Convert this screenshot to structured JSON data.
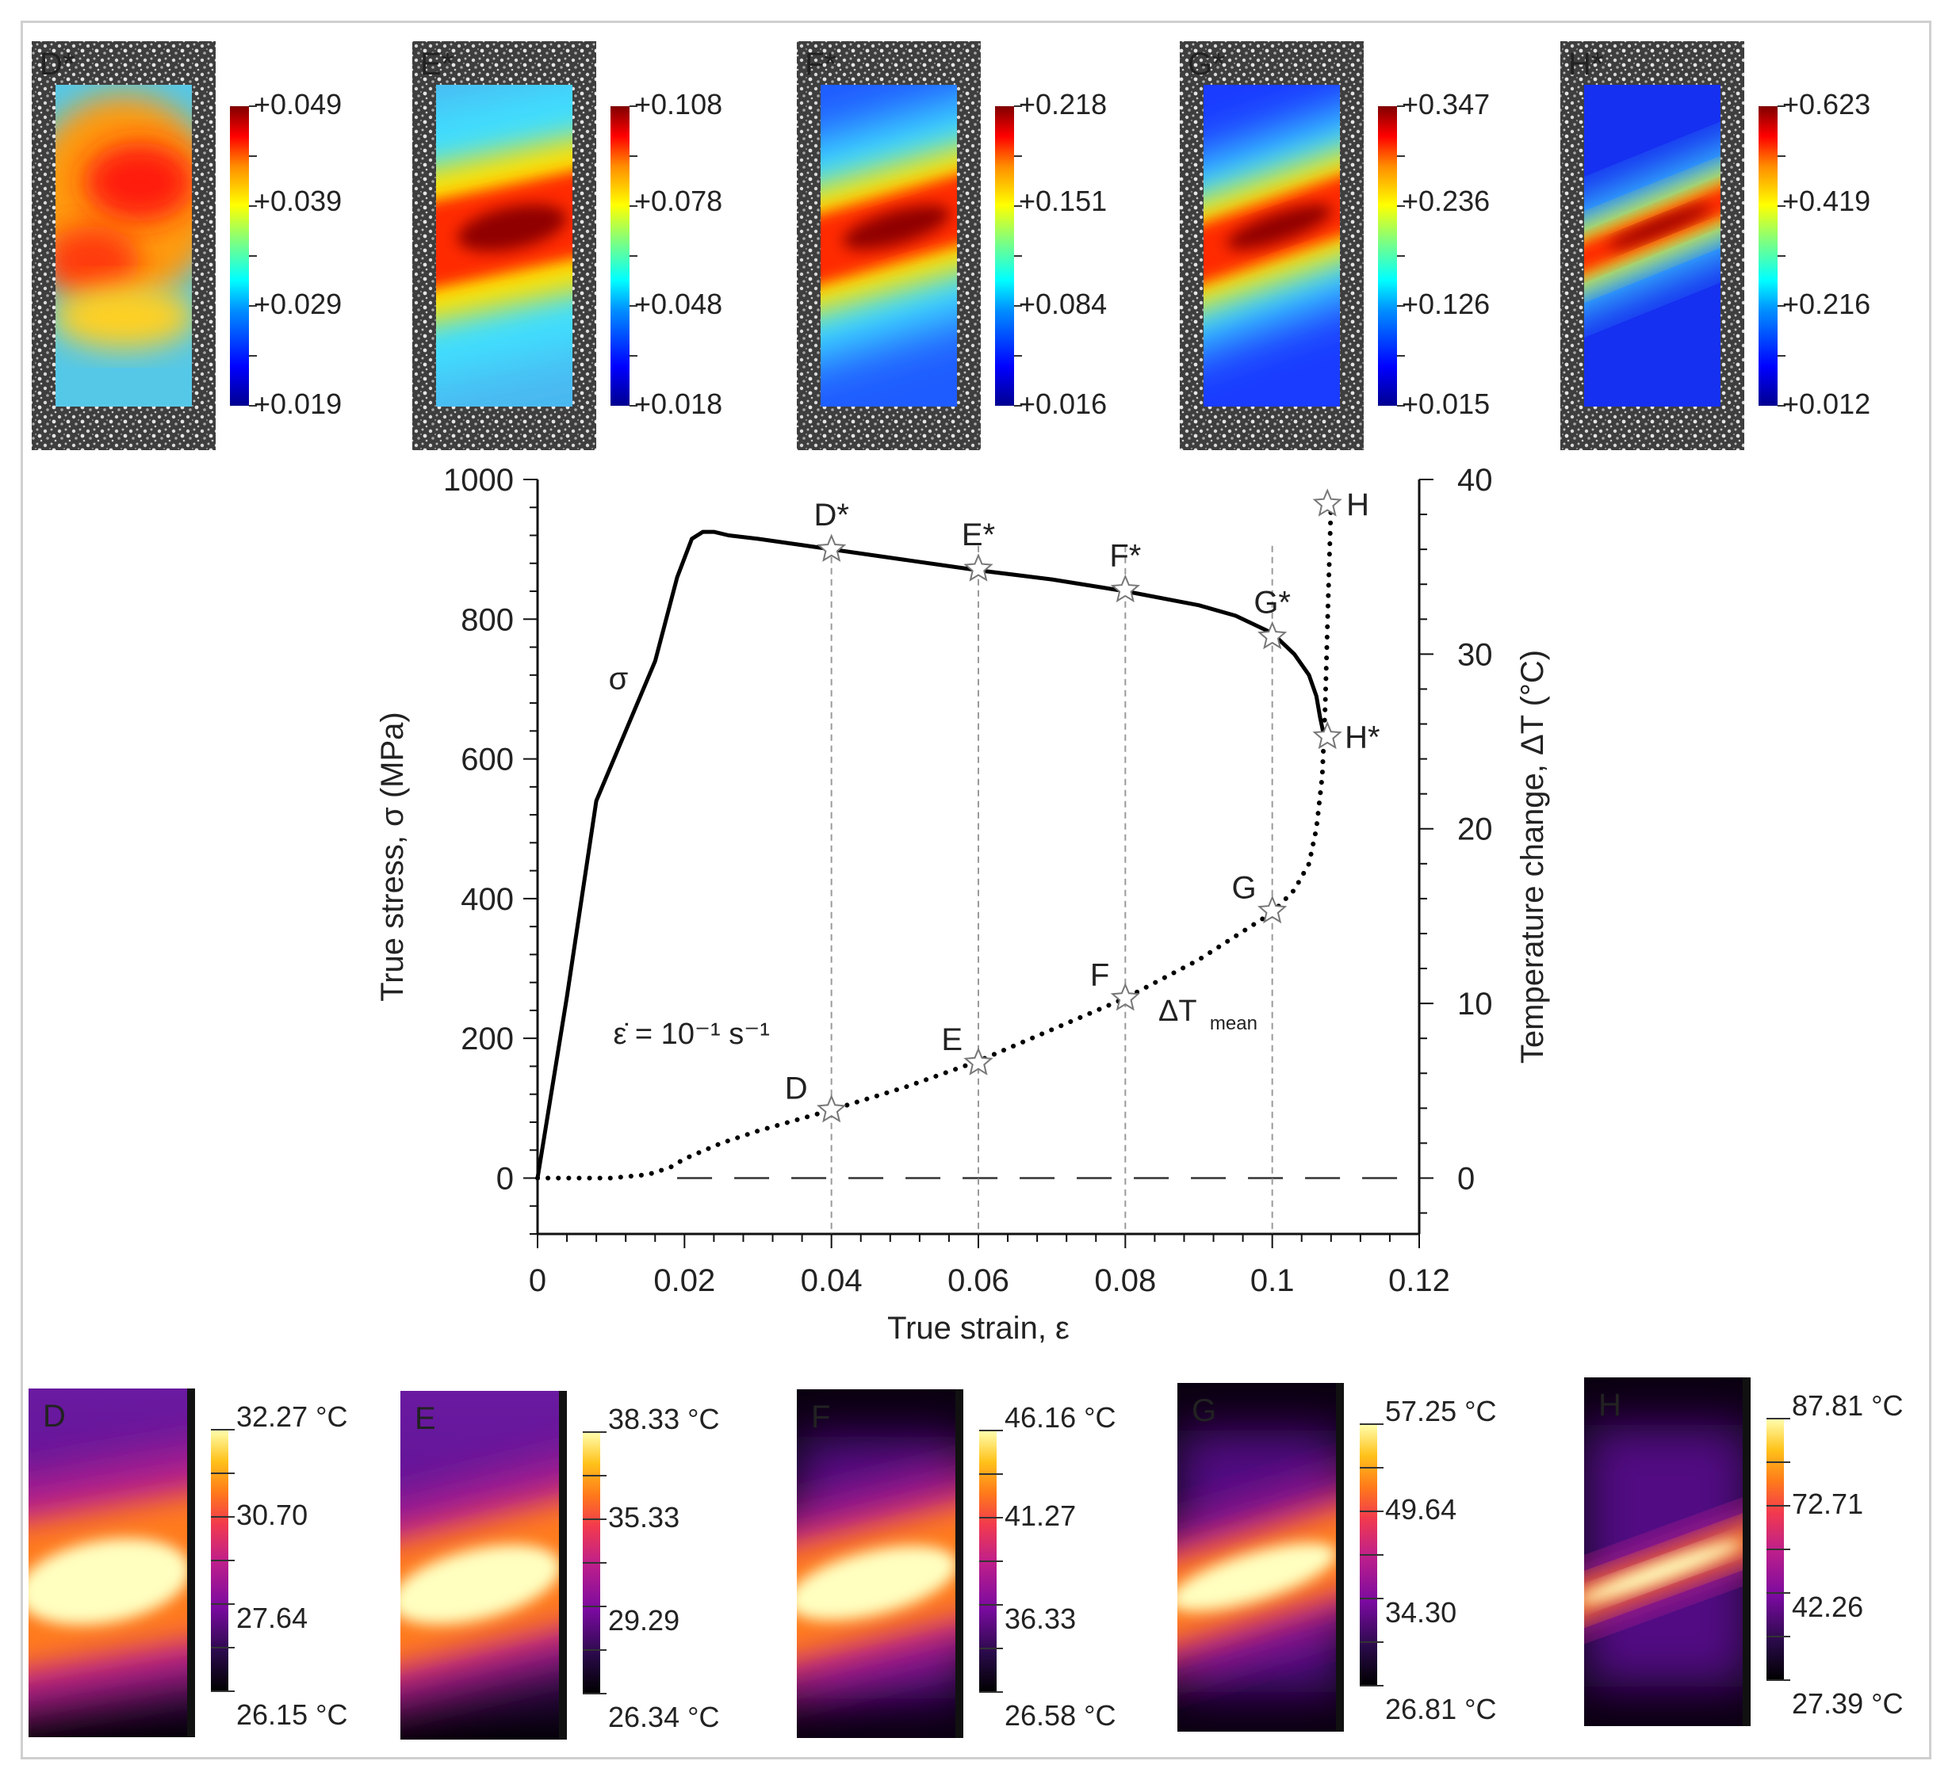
{
  "chart_data": {
    "type": "line",
    "title": "",
    "xlabel": "True strain, ε",
    "ylabel": "True stress, σ  (MPa)",
    "y2label": "Temperature change, ΔT  (°C)",
    "xlim": [
      0,
      0.12
    ],
    "ylim": [
      -80,
      1000
    ],
    "y2lim": [
      -3.2,
      40
    ],
    "x_ticks": [
      "0",
      "0.02",
      "0.04",
      "0.06",
      "0.08",
      "0.1",
      "0.12"
    ],
    "y_ticks": [
      "0",
      "200",
      "400",
      "600",
      "800",
      "1000"
    ],
    "y2_ticks": [
      "0",
      "10",
      "20",
      "30",
      "40"
    ],
    "strain_rate_label": "ε̇ = 10⁻¹ s⁻¹",
    "series": [
      {
        "name": "σ",
        "axis": "left",
        "style": "solid",
        "x": [
          0,
          0.004,
          0.008,
          0.012,
          0.016,
          0.019,
          0.021,
          0.0225,
          0.024,
          0.026,
          0.03,
          0.04,
          0.05,
          0.06,
          0.07,
          0.08,
          0.09,
          0.095,
          0.1,
          0.103,
          0.105,
          0.106,
          0.1065,
          0.107
        ],
        "y": [
          0,
          260,
          540,
          640,
          740,
          860,
          915,
          925,
          925,
          920,
          915,
          900,
          885,
          870,
          857,
          840,
          820,
          805,
          780,
          750,
          720,
          690,
          660,
          635
        ]
      },
      {
        "name": "ΔT_mean",
        "axis": "right",
        "style": "dotted",
        "x": [
          0,
          0.01,
          0.015,
          0.018,
          0.02,
          0.025,
          0.03,
          0.035,
          0.04,
          0.05,
          0.06,
          0.07,
          0.08,
          0.09,
          0.1,
          0.103,
          0.105,
          0.106,
          0.1068,
          0.1072,
          0.1076,
          0.108
        ],
        "y": [
          0,
          0,
          0.2,
          0.6,
          1.1,
          2.0,
          2.7,
          3.3,
          3.9,
          5.2,
          6.7,
          8.5,
          10.3,
          12.5,
          15.2,
          16.5,
          18.0,
          20.0,
          23.0,
          27.0,
          33.0,
          38.6
        ]
      }
    ],
    "reference_line": {
      "axis": "right",
      "y": 0,
      "style": "dashed"
    },
    "vertical_lines_x": [
      0.04,
      0.06,
      0.08,
      0.1
    ],
    "stress_markers": [
      {
        "label": "D*",
        "x": 0.04,
        "y": 900
      },
      {
        "label": "E*",
        "x": 0.06,
        "y": 872
      },
      {
        "label": "F*",
        "x": 0.08,
        "y": 842
      },
      {
        "label": "G*",
        "x": 0.1,
        "y": 775
      },
      {
        "label": "H*",
        "x": 0.1075,
        "y": 632
      }
    ],
    "temperature_markers": [
      {
        "label": "D",
        "x": 0.04,
        "y": 3.9
      },
      {
        "label": "E",
        "x": 0.06,
        "y": 6.6
      },
      {
        "label": "F",
        "x": 0.08,
        "y": 10.3
      },
      {
        "label": "G",
        "x": 0.1,
        "y": 15.3
      },
      {
        "label": "H",
        "x": 0.1075,
        "y": 38.6
      }
    ],
    "curve_labels": {
      "stress": "σ",
      "temperature_main": "ΔT",
      "temperature_sub": "mean"
    }
  },
  "strain_maps": [
    {
      "label": "D*",
      "scale": [
        "+0.049",
        "+0.039",
        "+0.029",
        "+0.019"
      ]
    },
    {
      "label": "E*",
      "scale": [
        "+0.108",
        "+0.078",
        "+0.048",
        "+0.018"
      ]
    },
    {
      "label": "F*",
      "scale": [
        "+0.218",
        "+0.151",
        "+0.084",
        "+0.016"
      ]
    },
    {
      "label": "G*",
      "scale": [
        "+0.347",
        "+0.236",
        "+0.126",
        "+0.015"
      ]
    },
    {
      "label": "H*",
      "scale": [
        "+0.623",
        "+0.419",
        "+0.216",
        "+0.012"
      ]
    }
  ],
  "thermal_maps": [
    {
      "label": "D",
      "scale": [
        "32.27 °C",
        "30.70",
        "27.64",
        "26.15 °C"
      ]
    },
    {
      "label": "E",
      "scale": [
        "38.33 °C",
        "35.33",
        "29.29",
        "26.34 °C"
      ]
    },
    {
      "label": "F",
      "scale": [
        "46.16 °C",
        "41.27",
        "36.33",
        "26.58 °C"
      ]
    },
    {
      "label": "G",
      "scale": [
        "57.25 °C",
        "49.64",
        "34.30",
        "26.81 °C"
      ]
    },
    {
      "label": "H",
      "scale": [
        "87.81 °C",
        "72.71",
        "42.26",
        "27.39 °C"
      ]
    }
  ],
  "colors": {
    "jet": [
      "#00008f",
      "#0000ff",
      "#0090ff",
      "#00ffff",
      "#7fff7f",
      "#ffff00",
      "#ff8c00",
      "#ff0000",
      "#800000"
    ],
    "hot": [
      "#000000",
      "#2a0a4a",
      "#7a0aa0",
      "#c0208a",
      "#f23a4e",
      "#ff7a1a",
      "#ffc21a",
      "#ffffb0"
    ],
    "speckle": "#5a5a5a",
    "axis": "#111111",
    "guide": "#9a9a9a"
  }
}
